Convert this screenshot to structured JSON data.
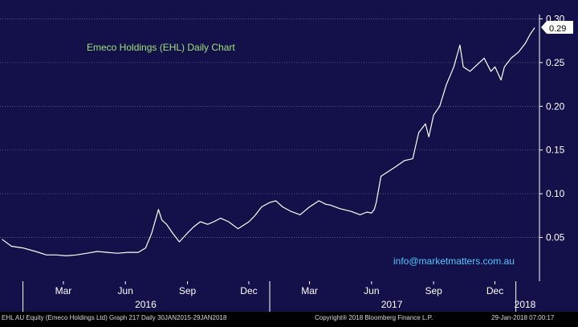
{
  "chart_data": {
    "type": "line",
    "title": "Emeco Holdings (EHL) Daily Chart",
    "watermark": "info@marketmatters.com.au",
    "last_price_label": "0.29",
    "y_ticks": [
      "0.30",
      "0.25",
      "0.20",
      "0.15",
      "0.10",
      "0.05"
    ],
    "ylim": [
      0.0,
      0.305
    ],
    "x_ticks": [
      "Mar",
      "Jun",
      "Sep",
      "Dec",
      "Mar",
      "Jun",
      "Sep",
      "Dec"
    ],
    "year_labels": [
      "2016",
      "2017",
      "2018"
    ],
    "footer_left": "EHL AU Equity (Emeco Holdings Ltd) Graph 217  Daily 30JAN2015-29JAN2018",
    "footer_center": "Copyright® 2018 Bloomberg Finance L.P.",
    "footer_right": "29-Jan-2018 07:00:17",
    "colors": {
      "background": "#14104a",
      "line": "#ffffff",
      "grid": "#6a6a90",
      "title": "#9fe37a",
      "watermark": "#4fc8ff",
      "axis_text": "#ffffff"
    },
    "series": [
      {
        "x": [
          "2015-12-01",
          "2015-12-15",
          "2016-01-01",
          "2016-01-20",
          "2016-02-05",
          "2016-02-20",
          "2016-03-05",
          "2016-03-20",
          "2016-04-05",
          "2016-04-20",
          "2016-05-05",
          "2016-05-20",
          "2016-06-05",
          "2016-06-20",
          "2016-07-01",
          "2016-07-10",
          "2016-07-20",
          "2016-07-25",
          "2016-08-01",
          "2016-08-10",
          "2016-08-20",
          "2016-09-01",
          "2016-09-10",
          "2016-09-20",
          "2016-10-01",
          "2016-10-10",
          "2016-10-20",
          "2016-11-01",
          "2016-11-15",
          "2016-12-01",
          "2016-12-10",
          "2016-12-20",
          "2017-01-01",
          "2017-01-10",
          "2017-01-20",
          "2017-02-01",
          "2017-02-15",
          "2017-03-01",
          "2017-03-15",
          "2017-03-25",
          "2017-04-01",
          "2017-04-15",
          "2017-05-01",
          "2017-05-15",
          "2017-05-25",
          "2017-06-01",
          "2017-06-05",
          "2017-06-08",
          "2017-06-15",
          "2017-06-25",
          "2017-07-05",
          "2017-07-20",
          "2017-08-01",
          "2017-08-10",
          "2017-08-20",
          "2017-08-25",
          "2017-09-01",
          "2017-09-10",
          "2017-09-20",
          "2017-10-01",
          "2017-10-10",
          "2017-10-15",
          "2017-10-25",
          "2017-11-01",
          "2017-11-15",
          "2017-11-25",
          "2017-12-01",
          "2017-12-10",
          "2017-12-15",
          "2017-12-25",
          "2018-01-05",
          "2018-01-15",
          "2018-01-22",
          "2018-01-29"
        ],
        "values": [
          0.048,
          0.04,
          0.038,
          0.034,
          0.03,
          0.03,
          0.029,
          0.03,
          0.032,
          0.034,
          0.033,
          0.032,
          0.033,
          0.033,
          0.038,
          0.055,
          0.082,
          0.07,
          0.065,
          0.055,
          0.045,
          0.055,
          0.062,
          0.068,
          0.065,
          0.068,
          0.072,
          0.068,
          0.06,
          0.068,
          0.075,
          0.085,
          0.09,
          0.092,
          0.085,
          0.08,
          0.076,
          0.085,
          0.092,
          0.088,
          0.087,
          0.083,
          0.08,
          0.076,
          0.079,
          0.078,
          0.082,
          0.09,
          0.12,
          0.125,
          0.13,
          0.138,
          0.14,
          0.17,
          0.18,
          0.165,
          0.19,
          0.2,
          0.225,
          0.245,
          0.27,
          0.245,
          0.24,
          0.245,
          0.255,
          0.24,
          0.245,
          0.23,
          0.245,
          0.255,
          0.262,
          0.272,
          0.282,
          0.29
        ]
      }
    ]
  }
}
